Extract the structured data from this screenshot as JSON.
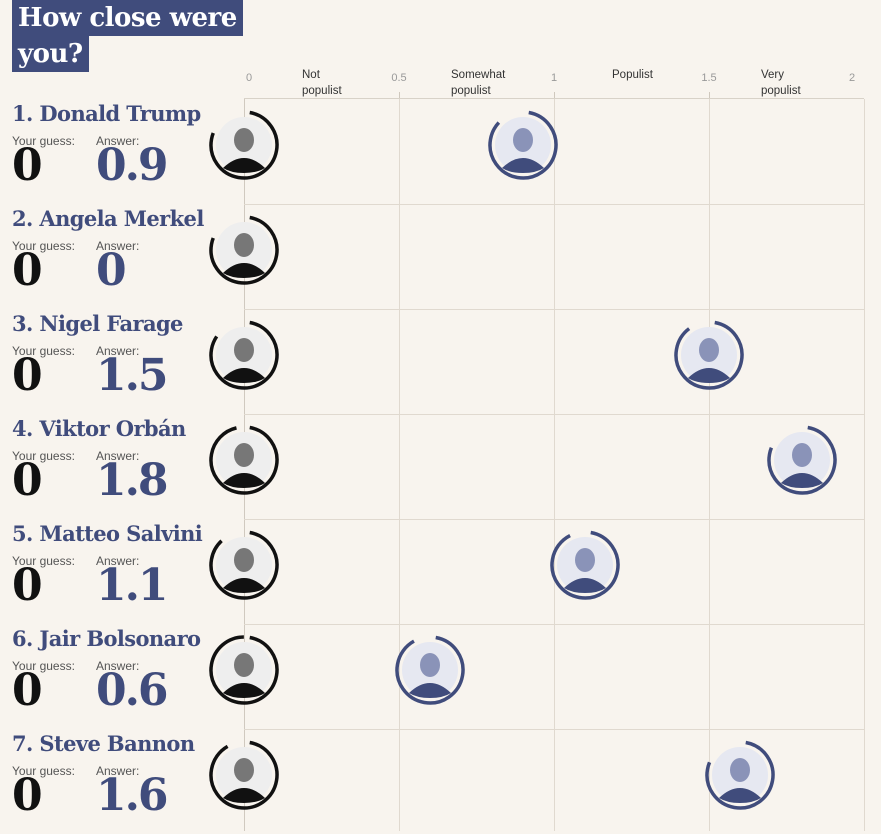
{
  "title_lines": [
    "How close were",
    "you?"
  ],
  "axis": {
    "ticks": [
      "0",
      "0.5",
      "1",
      "1.5",
      "2"
    ],
    "categories": [
      {
        "lines": [
          "Not",
          "populist"
        ]
      },
      {
        "lines": [
          "Somewhat",
          "populist"
        ]
      },
      {
        "lines": [
          "Populist"
        ]
      },
      {
        "lines": [
          "Very",
          "populist"
        ]
      }
    ]
  },
  "labels": {
    "guess": "Your guess:",
    "answer": "Answer:"
  },
  "colors": {
    "accent": "#404c7c",
    "guess": "#111111",
    "background": "#f8f4ee"
  },
  "chart_data": {
    "type": "scatter",
    "xlim": [
      0,
      2
    ],
    "series": [
      {
        "name": "Your guess",
        "values": [
          0,
          0,
          0,
          0,
          0,
          0,
          0
        ]
      },
      {
        "name": "Answer",
        "values": [
          0.9,
          0,
          1.5,
          1.8,
          1.1,
          0.6,
          1.6
        ]
      }
    ],
    "categories": [
      "1. Donald Trump",
      "2. Angela Merkel",
      "3. Nigel Farage",
      "4. Viktor Orbán",
      "5. Matteo Salvini",
      "6. Jair Bolsonaro",
      "7. Steve Bannon"
    ],
    "rows": [
      {
        "name": "1. Donald Trump",
        "guess": "0",
        "answer": "0.9",
        "guess_x": 0,
        "answer_x": 0.9
      },
      {
        "name": "2. Angela Merkel",
        "guess": "0",
        "answer": "0",
        "guess_x": 0,
        "answer_x": 0
      },
      {
        "name": "3. Nigel Farage",
        "guess": "0",
        "answer": "1.5",
        "guess_x": 0,
        "answer_x": 1.5
      },
      {
        "name": "4. Viktor Orbán",
        "guess": "0",
        "answer": "1.8",
        "guess_x": 0,
        "answer_x": 1.8
      },
      {
        "name": "5. Matteo Salvini",
        "guess": "0",
        "answer": "1.1",
        "guess_x": 0,
        "answer_x": 1.1
      },
      {
        "name": "6. Jair Bolsonaro",
        "guess": "0",
        "answer": "0.6",
        "guess_x": 0,
        "answer_x": 0.6
      },
      {
        "name": "7. Steve Bannon",
        "guess": "0",
        "answer": "1.6",
        "guess_x": 0,
        "answer_x": 1.6
      }
    ]
  }
}
